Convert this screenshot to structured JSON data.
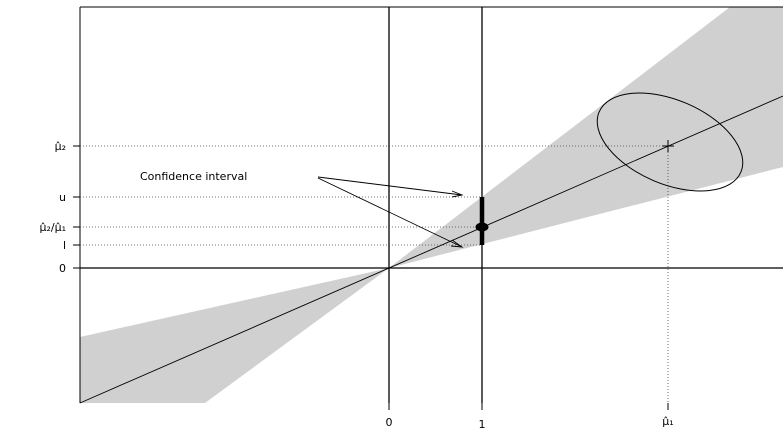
{
  "chart_data": {
    "type": "diagram",
    "annotation": "Confidence interval",
    "x_ticks": [
      {
        "label": "0",
        "value": 0
      },
      {
        "label": "1",
        "value": 1
      },
      {
        "label": "μ̂₁",
        "value": 3
      }
    ],
    "y_ticks": [
      {
        "label": "μ̂₂",
        "value": 2.0
      },
      {
        "label": "u",
        "value": 1.2
      },
      {
        "label": "μ̂₂/μ̂₁",
        "value": 0.667
      },
      {
        "label": "l",
        "value": 0.36
      },
      {
        "label": "0",
        "value": 0
      }
    ],
    "ratio_estimate": 0.667,
    "interval": {
      "lower": 0.36,
      "upper": 1.2
    },
    "point_estimate": {
      "x": 3,
      "y": 2.0
    }
  }
}
